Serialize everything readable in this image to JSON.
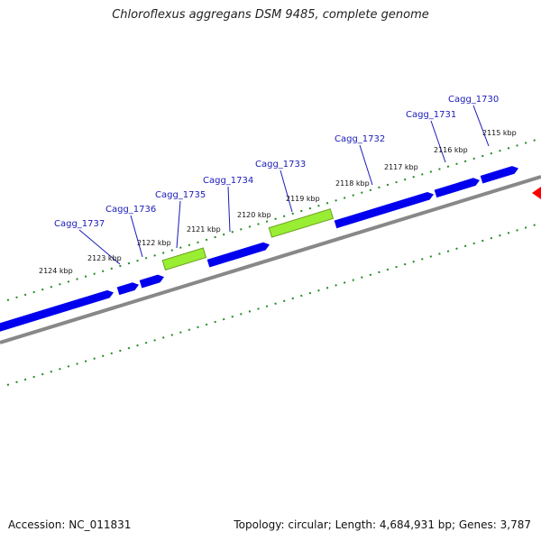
{
  "title": "Chloroflexus aggregans DSM 9485, complete genome",
  "genes": [
    {
      "name": "Cagg_1737",
      "color": "#0000ee"
    },
    {
      "name": "Cagg_1736",
      "color": "#0000ee"
    },
    {
      "name": "Cagg_1735",
      "color": "#0000ee"
    },
    {
      "name": "Cagg_1734",
      "color": "#99ee33"
    },
    {
      "name": "Cagg_1733",
      "color": "#0000ee"
    },
    {
      "name": "Cagg_1732",
      "color": "#99ee33"
    },
    {
      "name": "Cagg_1731",
      "color": "#0000ee"
    },
    {
      "name": "Cagg_1730",
      "color": "#0000ee"
    }
  ],
  "kbp_ticks": [
    "2124 kbp",
    "2123 kbp",
    "2122 kbp",
    "2121 kbp",
    "2120 kbp",
    "2119 kbp",
    "2118 kbp",
    "2117 kbp",
    "2116 kbp",
    "2115 kbp"
  ],
  "colors": {
    "gene": "#0000ee",
    "highlight_gene": "#99ee33",
    "backbone": "#888888",
    "ticks": "#228b22",
    "marker": "#ff0000",
    "label_leader": "#1a1ab8"
  },
  "footer": {
    "accession": "Accession: NC_011831",
    "summary": "Topology: circular; Length: 4,684,931 bp; Genes: 3,787"
  }
}
